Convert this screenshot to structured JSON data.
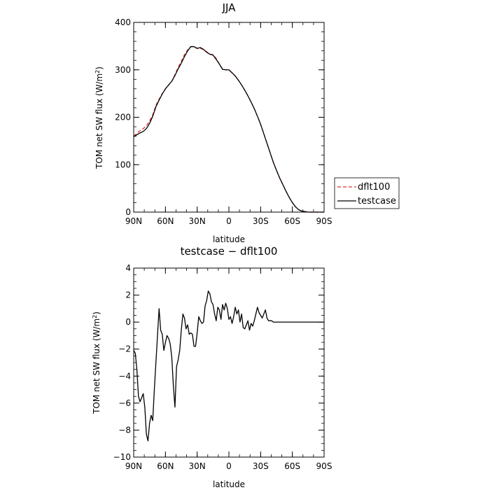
{
  "chart_data": [
    {
      "type": "line",
      "title": "JJA",
      "xlabel": "latitude",
      "ylabel_main": "TOM net SW flux (W/m",
      "ylabel_sup": "2",
      "ylabel_close": ")",
      "xlim": [
        90,
        -90
      ],
      "ylim": [
        0,
        400
      ],
      "x_tick_values": [
        90,
        60,
        30,
        0,
        -30,
        -60,
        -90
      ],
      "x_tick_labels": [
        "90N",
        "60N",
        "30N",
        "0",
        "30S",
        "60S",
        "90S"
      ],
      "y_tick_values": [
        0,
        100,
        200,
        300,
        400
      ],
      "y_tick_labels": [
        "0",
        "100",
        "200",
        "300",
        "400"
      ],
      "y_minor_step": 20,
      "x_minor_step": 10,
      "legend": {
        "placement": "right-middle-outside"
      },
      "series": [
        {
          "name": "dflt100",
          "color": "#e4322b",
          "dash": "dashed",
          "x": [
            90,
            87,
            84,
            81,
            78,
            75,
            72,
            69,
            66,
            63,
            60,
            57,
            54,
            51,
            48,
            45,
            42,
            39,
            36,
            33,
            30,
            27,
            24,
            21,
            18,
            15,
            12,
            9,
            6,
            3,
            0,
            -3,
            -6,
            -9,
            -12,
            -15,
            -18,
            -21,
            -24,
            -27,
            -30,
            -33,
            -36,
            -39,
            -42,
            -45,
            -48,
            -51,
            -54,
            -57,
            -60,
            -63,
            -66,
            -69,
            -72,
            -75,
            -78,
            -81,
            -84,
            -87,
            -90
          ],
          "y": [
            160,
            166,
            172,
            176,
            182,
            192,
            205,
            225,
            238,
            250,
            260,
            268,
            276,
            290,
            305,
            318,
            332,
            342,
            349,
            348,
            346,
            345,
            343,
            338,
            333,
            332,
            324,
            312,
            302,
            300,
            300,
            293,
            287,
            278,
            268,
            257,
            245,
            232,
            218,
            202,
            185,
            165,
            145,
            125,
            105,
            88,
            72,
            58,
            44,
            31,
            20,
            11,
            5,
            2,
            1,
            0,
            0,
            0,
            0,
            0,
            0
          ]
        },
        {
          "name": "testcase",
          "color": "#000000",
          "dash": "solid",
          "x": [
            90,
            87,
            84,
            81,
            78,
            75,
            72,
            69,
            66,
            63,
            60,
            57,
            54,
            51,
            48,
            45,
            42,
            39,
            36,
            33,
            30,
            27,
            24,
            21,
            18,
            15,
            12,
            9,
            6,
            3,
            0,
            -3,
            -6,
            -9,
            -12,
            -15,
            -18,
            -21,
            -24,
            -27,
            -30,
            -33,
            -36,
            -39,
            -42,
            -45,
            -48,
            -51,
            -54,
            -57,
            -60,
            -63,
            -66,
            -69,
            -72,
            -75,
            -78,
            -81,
            -84,
            -87,
            -90
          ],
          "y": [
            159,
            163,
            167,
            170,
            176,
            187,
            202,
            222,
            236,
            249,
            260,
            268,
            276,
            288,
            302,
            314,
            328,
            340,
            349,
            349,
            345,
            347,
            343,
            337,
            333,
            331,
            322,
            312,
            301,
            300,
            300,
            294,
            287,
            278,
            268,
            257,
            245,
            232,
            218,
            202,
            185,
            165,
            145,
            125,
            105,
            88,
            72,
            58,
            44,
            31,
            20,
            11,
            5,
            2,
            1,
            0,
            0,
            0,
            0,
            0,
            0
          ]
        }
      ]
    },
    {
      "type": "line",
      "title": "testcase − dflt100",
      "xlabel": "latitude",
      "ylabel_main": "TOM net SW flux (W/m",
      "ylabel_sup": "2",
      "ylabel_close": ")",
      "xlim": [
        90,
        -90
      ],
      "ylim": [
        -10,
        4
      ],
      "x_tick_values": [
        90,
        60,
        30,
        0,
        -30,
        -60,
        -90
      ],
      "x_tick_labels": [
        "90N",
        "60N",
        "30N",
        "0",
        "30S",
        "60S",
        "90S"
      ],
      "y_tick_values": [
        4,
        2,
        0,
        -2,
        -4,
        -6,
        -8,
        -10
      ],
      "y_tick_labels": [
        "4",
        "2",
        "0",
        "−2",
        "−4",
        "−6",
        "−8",
        "−10"
      ],
      "y_minor_step": 0.5,
      "x_minor_step": 10,
      "series": [
        {
          "name": "",
          "color": "#000000",
          "dash": "solid",
          "x": [
            90,
            88.5,
            87,
            85.5,
            84,
            82.5,
            81,
            79.5,
            78,
            76.5,
            75,
            73.5,
            72,
            70.5,
            69,
            67.5,
            66,
            64.5,
            63,
            61.5,
            60,
            58.5,
            57,
            55.5,
            54,
            52.5,
            51,
            49.5,
            48,
            46.5,
            45,
            43.5,
            42,
            40.5,
            39,
            37.5,
            36,
            34.5,
            33,
            31.5,
            30,
            28.5,
            27,
            25.5,
            24,
            22.5,
            21,
            19.5,
            18,
            16.5,
            15,
            13.5,
            12,
            10.5,
            9,
            7.5,
            6,
            4.5,
            3,
            1.5,
            0,
            -1.5,
            -3,
            -4.5,
            -6,
            -7.5,
            -9,
            -10.5,
            -12,
            -13.5,
            -15,
            -16.5,
            -18,
            -19.5,
            -21,
            -22.5,
            -24,
            -25.5,
            -27,
            -28.5,
            -30,
            -31.5,
            -33,
            -34.5,
            -36,
            -37.5,
            -39,
            -40.5,
            -42,
            -43.5,
            -45,
            -46.5,
            -48,
            -49.5,
            -51,
            -52.5,
            -54,
            -55.5,
            -57,
            -58.5,
            -60,
            -61.5,
            -63,
            -64.5,
            -66,
            -67.5,
            -69,
            -70.5,
            -72,
            -73.5,
            -75,
            -76.5,
            -78,
            -79.5,
            -81,
            -82.5,
            -84,
            -85.5,
            -87,
            -88.5,
            -90
          ],
          "y": [
            -2.1,
            -2.3,
            -3.5,
            -5.5,
            -5.9,
            -5.6,
            -5.3,
            -6.3,
            -8.3,
            -8.8,
            -7.5,
            -6.9,
            -7.3,
            -5.0,
            -3.0,
            -1.0,
            1.0,
            -0.6,
            -0.9,
            -2.1,
            -1.5,
            -1.0,
            -1.2,
            -1.6,
            -2.6,
            -4.7,
            -6.3,
            -3.3,
            -2.8,
            -2.1,
            -0.6,
            0.6,
            0.3,
            -0.5,
            -0.2,
            -0.9,
            -0.8,
            -0.9,
            -1.8,
            -1.8,
            -0.8,
            0.4,
            0.1,
            -0.1,
            0.0,
            1.2,
            1.6,
            2.3,
            2.1,
            1.5,
            1.3,
            0.6,
            0.1,
            1.1,
            0.9,
            0.2,
            1.3,
            0.9,
            1.4,
            1.0,
            0.2,
            0.4,
            -0.1,
            0.4,
            1.1,
            0.6,
            0.9,
            0.0,
            0.6,
            -0.4,
            -0.5,
            -0.2,
            0.1,
            -0.6,
            -0.1,
            -0.3,
            0.1,
            0.6,
            1.1,
            0.7,
            0.5,
            0.3,
            0.6,
            0.9,
            0.3,
            0.1,
            0.1,
            0.1,
            0.0,
            0.0,
            0.0,
            0.0,
            0.0,
            0.0,
            0.0,
            0.0,
            0.0,
            0.0,
            0.0,
            0.0,
            0.0,
            0.0,
            0.0,
            0.0,
            0.0,
            0.0,
            0.0,
            0.0,
            0.0,
            0.0,
            0.0,
            0.0,
            0.0,
            0.0,
            0.0,
            0.0,
            0.0,
            0.0,
            0.0,
            0.0,
            0.0
          ]
        }
      ]
    }
  ]
}
